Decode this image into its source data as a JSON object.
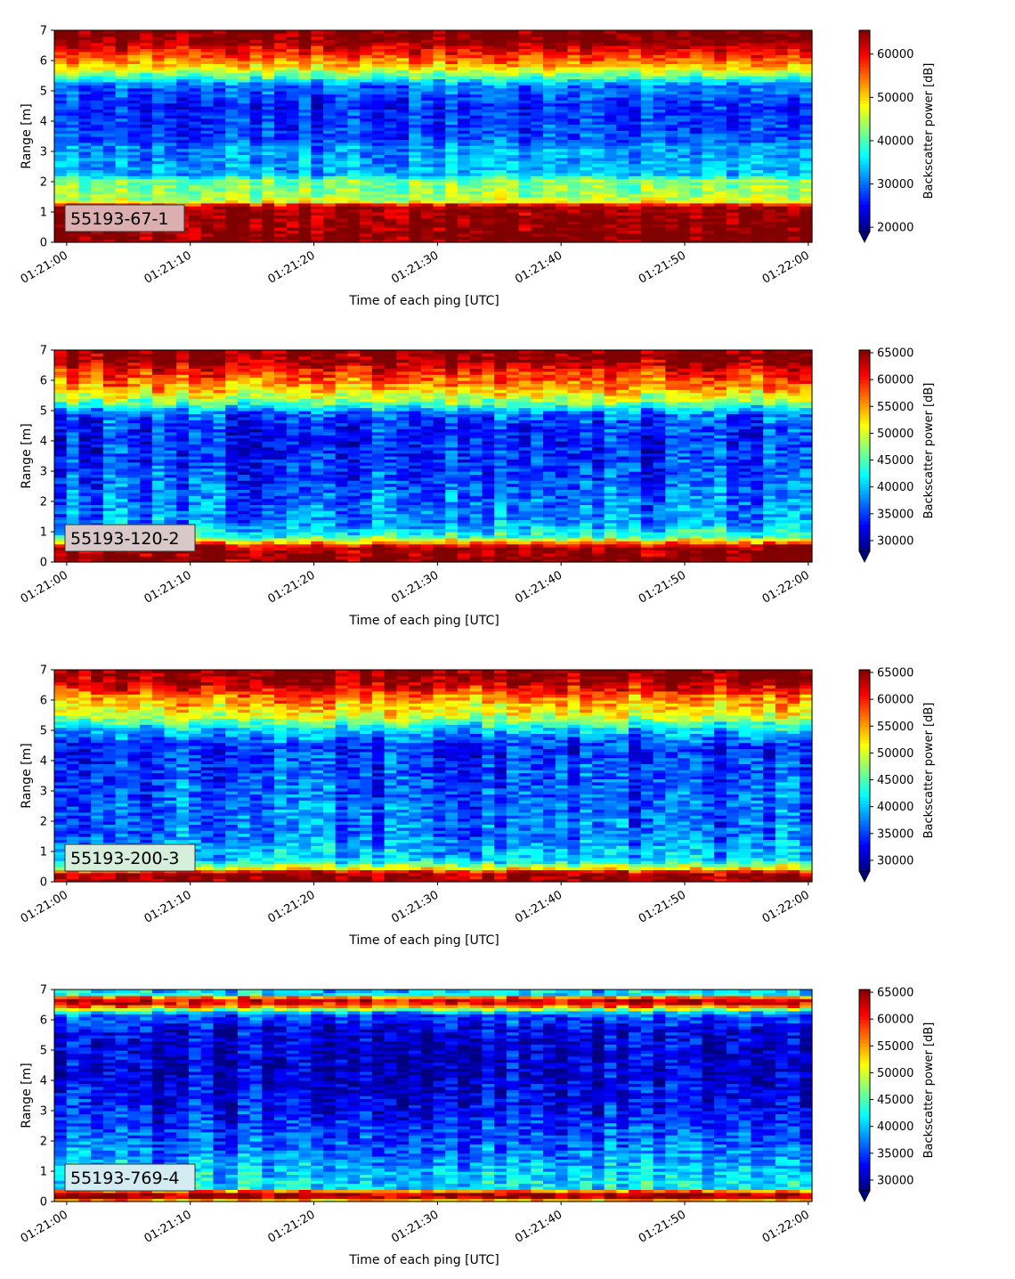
{
  "chart_data": [
    {
      "type": "heatmap",
      "panel_label": "55193-67-1",
      "xlabel": "Time of each ping [UTC]",
      "ylabel": "Range [m]",
      "xtick_labels": [
        "01:21:00",
        "01:21:10",
        "01:21:20",
        "01:21:30",
        "01:21:40",
        "01:21:50",
        "01:22:00"
      ],
      "xtick_seconds": [
        0,
        10,
        20,
        30,
        40,
        50,
        60
      ],
      "xlim_seconds": [
        -1,
        60.3
      ],
      "yticks": [
        0,
        1,
        2,
        3,
        4,
        5,
        6,
        7
      ],
      "ylim": [
        0,
        7
      ],
      "colorbar_label": "Backscatter power [dB]",
      "colorbar_ticks": [
        20000,
        30000,
        40000,
        50000,
        60000
      ],
      "clim": [
        19000,
        65500
      ],
      "colormap": "jet",
      "colorbar_extend": "min",
      "label_box_color": "#dbaeaf",
      "profile": [
        {
          "r": 0.0,
          "v": 65500
        },
        {
          "r": 0.2,
          "v": 65500
        },
        {
          "r": 1.2,
          "v": 64000
        },
        {
          "r": 1.35,
          "v": 47000
        },
        {
          "r": 1.6,
          "v": 43000
        },
        {
          "r": 2.05,
          "v": 42000
        },
        {
          "r": 2.25,
          "v": 33000
        },
        {
          "r": 3.2,
          "v": 31000
        },
        {
          "r": 3.4,
          "v": 28000
        },
        {
          "r": 4.5,
          "v": 26000
        },
        {
          "r": 5.2,
          "v": 30000
        },
        {
          "r": 5.5,
          "v": 41000
        },
        {
          "r": 5.9,
          "v": 52000
        },
        {
          "r": 6.3,
          "v": 59000
        },
        {
          "r": 6.7,
          "v": 65500
        },
        {
          "r": 7.0,
          "v": 65500
        }
      ]
    },
    {
      "type": "heatmap",
      "panel_label": "55193-120-2",
      "xlabel": "Time of each ping [UTC]",
      "ylabel": "Range [m]",
      "xtick_labels": [
        "01:21:00",
        "01:21:10",
        "01:21:20",
        "01:21:30",
        "01:21:40",
        "01:21:50",
        "01:22:00"
      ],
      "xtick_seconds": [
        0,
        10,
        20,
        30,
        40,
        50,
        60
      ],
      "xlim_seconds": [
        -1,
        60.3
      ],
      "yticks": [
        0,
        1,
        2,
        3,
        4,
        5,
        6,
        7
      ],
      "ylim": [
        0,
        7
      ],
      "colorbar_label": "Backscatter power [dB]",
      "colorbar_ticks": [
        30000,
        35000,
        40000,
        45000,
        50000,
        55000,
        60000,
        65000
      ],
      "clim": [
        28000,
        65500
      ],
      "colormap": "jet",
      "colorbar_extend": "min",
      "label_box_color": "#d8c9c8",
      "profile": [
        {
          "r": 0.0,
          "v": 65500
        },
        {
          "r": 0.5,
          "v": 65000
        },
        {
          "r": 0.65,
          "v": 56000
        },
        {
          "r": 0.85,
          "v": 44000
        },
        {
          "r": 1.3,
          "v": 38000
        },
        {
          "r": 2.0,
          "v": 37000
        },
        {
          "r": 3.0,
          "v": 35000
        },
        {
          "r": 4.2,
          "v": 33500
        },
        {
          "r": 4.9,
          "v": 36000
        },
        {
          "r": 5.3,
          "v": 47000
        },
        {
          "r": 5.8,
          "v": 55000
        },
        {
          "r": 6.3,
          "v": 60000
        },
        {
          "r": 6.7,
          "v": 65500
        },
        {
          "r": 7.0,
          "v": 65500
        }
      ]
    },
    {
      "type": "heatmap",
      "panel_label": "55193-200-3",
      "xlabel": "Time of each ping [UTC]",
      "ylabel": "Range [m]",
      "xtick_labels": [
        "01:21:00",
        "01:21:10",
        "01:21:20",
        "01:21:30",
        "01:21:40",
        "01:21:50",
        "01:22:00"
      ],
      "xtick_seconds": [
        0,
        10,
        20,
        30,
        40,
        50,
        60
      ],
      "xlim_seconds": [
        -1,
        60.3
      ],
      "yticks": [
        0,
        1,
        2,
        3,
        4,
        5,
        6,
        7
      ],
      "ylim": [
        0,
        7
      ],
      "colorbar_label": "Backscatter power [dB]",
      "colorbar_ticks": [
        30000,
        35000,
        40000,
        45000,
        50000,
        55000,
        60000,
        65000
      ],
      "clim": [
        28000,
        65500
      ],
      "colormap": "jet",
      "colorbar_extend": "min",
      "label_box_color": "#d6eedc",
      "profile": [
        {
          "r": 0.0,
          "v": 65500
        },
        {
          "r": 0.3,
          "v": 64000
        },
        {
          "r": 0.45,
          "v": 52000
        },
        {
          "r": 0.7,
          "v": 41000
        },
        {
          "r": 1.5,
          "v": 37000
        },
        {
          "r": 3.0,
          "v": 36000
        },
        {
          "r": 4.5,
          "v": 34000
        },
        {
          "r": 5.0,
          "v": 40000
        },
        {
          "r": 5.5,
          "v": 50000
        },
        {
          "r": 6.1,
          "v": 56000
        },
        {
          "r": 6.6,
          "v": 64000
        },
        {
          "r": 7.0,
          "v": 65500
        }
      ]
    },
    {
      "type": "heatmap",
      "panel_label": "55193-769-4",
      "xlabel": "Time of each ping [UTC]",
      "ylabel": "Range [m]",
      "xtick_labels": [
        "01:21:00",
        "01:21:10",
        "01:21:20",
        "01:21:30",
        "01:21:40",
        "01:21:50",
        "01:22:00"
      ],
      "xtick_seconds": [
        0,
        10,
        20,
        30,
        40,
        50,
        60
      ],
      "xlim_seconds": [
        -1,
        60.3
      ],
      "yticks": [
        0,
        1,
        2,
        3,
        4,
        5,
        6,
        7
      ],
      "ylim": [
        0,
        7
      ],
      "colorbar_label": "Backscatter power [dB]",
      "colorbar_ticks": [
        30000,
        35000,
        40000,
        45000,
        50000,
        55000,
        60000,
        65000
      ],
      "clim": [
        28000,
        65500
      ],
      "colormap": "jet",
      "colorbar_extend": "min",
      "label_box_color": "#d2ecf2",
      "profile": [
        {
          "r": 0.0,
          "v": 50000
        },
        {
          "r": 0.15,
          "v": 64000
        },
        {
          "r": 0.3,
          "v": 64000
        },
        {
          "r": 0.45,
          "v": 42000
        },
        {
          "r": 1.0,
          "v": 40000
        },
        {
          "r": 2.0,
          "v": 36000
        },
        {
          "r": 3.0,
          "v": 33000
        },
        {
          "r": 4.5,
          "v": 31000
        },
        {
          "r": 5.6,
          "v": 31500
        },
        {
          "r": 6.2,
          "v": 36000
        },
        {
          "r": 6.5,
          "v": 60000
        },
        {
          "r": 6.7,
          "v": 63000
        },
        {
          "r": 6.85,
          "v": 42000
        },
        {
          "r": 7.0,
          "v": 40000
        }
      ]
    }
  ]
}
